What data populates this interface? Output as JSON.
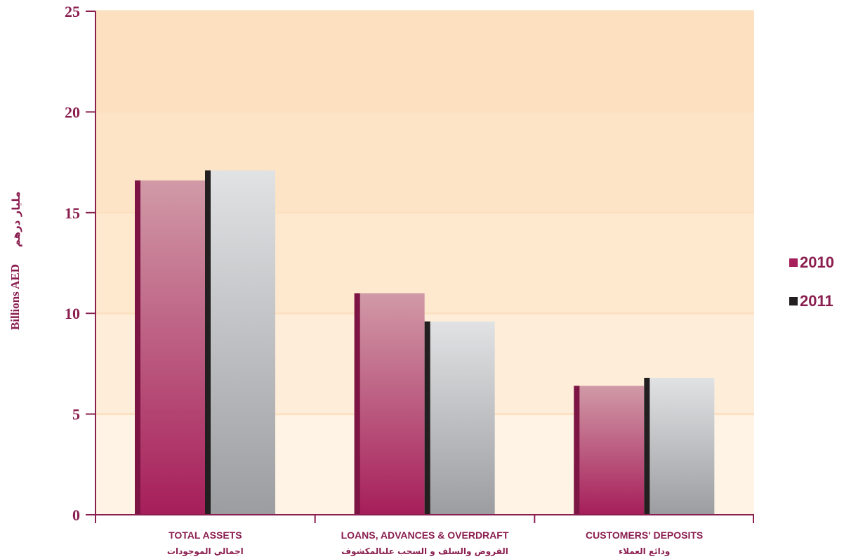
{
  "chart_data": {
    "type": "bar",
    "categories": [
      "TOTAL ASSETS",
      "LOANS, ADVANCES & OVERDRAFT",
      "CUSTOMERS'  DEPOSITS"
    ],
    "categories_ar": [
      "اجمالي الموجودات",
      "القروض والسلف و السحب علىالمكشوف",
      "ودائع العملاء"
    ],
    "series": [
      {
        "name": "2010",
        "values": [
          16.6,
          11.0,
          6.4
        ]
      },
      {
        "name": "2011",
        "values": [
          17.1,
          9.6,
          6.8
        ]
      }
    ],
    "ylabel": "Billions AED",
    "ylabel_ar": "مليار درهم",
    "ylim": [
      0,
      25
    ],
    "yticks": [
      "0",
      "5",
      "10",
      "15",
      "20",
      "25"
    ],
    "grid": true,
    "legend": "right",
    "colors": {
      "series_2010": "#a61e5a",
      "series_2010_light": "#d19aa7",
      "series_2010_edge": "#7c1444",
      "series_2011": "#9c9da0",
      "series_2011_light": "#e1e2e4",
      "series_2011_edge": "#231f20",
      "legend_2010": "#a61e5a",
      "legend_2011": "#231f20",
      "axis": "#8a1e4f",
      "text": "#8a1e4f",
      "band_top": "#fde0bf",
      "band_bottom": "#fef3e4",
      "gridline": "#fbe1c2"
    }
  }
}
